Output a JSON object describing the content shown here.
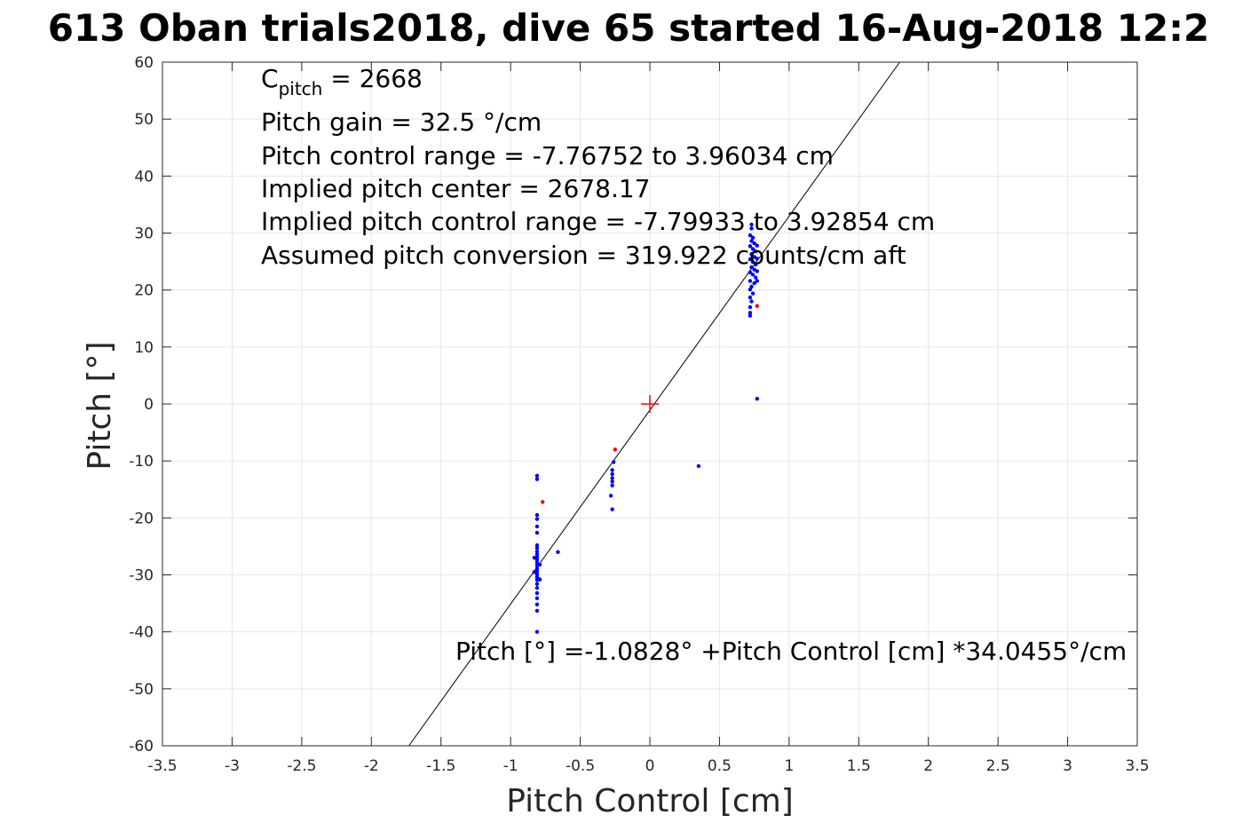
{
  "chart_data": {
    "type": "scatter",
    "title": "613 Oban trials2018, dive 65 started 16-Aug-2018 12:2",
    "xlabel": "Pitch Control [cm]",
    "ylabel": "Pitch [°]",
    "xlim": [
      -3.5,
      3.5
    ],
    "ylim": [
      -60,
      60
    ],
    "xticks": [
      "-3.5",
      "-3",
      "-2.5",
      "-2",
      "-1.5",
      "-1",
      "-0.5",
      "0",
      "0.5",
      "1",
      "1.5",
      "2",
      "2.5",
      "3",
      "3.5"
    ],
    "yticks": [
      "60",
      "50",
      "40",
      "30",
      "20",
      "10",
      "0",
      "-10",
      "-20",
      "-30",
      "-40",
      "-50",
      "-60"
    ],
    "grid": true,
    "annotations": {
      "c_pitch_symbol": "C",
      "c_pitch_sub": "pitch",
      "c_pitch_value": " = 2668",
      "pitch_gain": "Pitch gain = 32.5 °/cm",
      "pitch_control_range": "Pitch control range = -7.76752 to 3.96034 cm",
      "implied_center": "Implied pitch center = 2678.17",
      "implied_range": "Implied pitch control range = -7.79933 to 3.92854 cm",
      "assumed_conversion": "Assumed pitch conversion = 319.922 counts/cm aft",
      "fit_equation": "Pitch [°] =-1.0828° +Pitch Control [cm] *34.0455°/cm"
    },
    "fit_line": {
      "intercept": -1.0828,
      "slope": 34.0455,
      "color": "#000000"
    },
    "center_marker": {
      "x": 0,
      "y": 0,
      "color": "#ff0000"
    },
    "series": [
      {
        "color": "#0000ff",
        "points": [
          [
            -0.81,
            -12.6
          ],
          [
            -0.81,
            -13.2
          ],
          [
            -0.81,
            -19.5
          ],
          [
            -0.81,
            -20.2
          ],
          [
            -0.81,
            -21.5
          ],
          [
            -0.81,
            -22.6
          ],
          [
            -0.81,
            -24.8
          ],
          [
            -0.81,
            -25.3
          ],
          [
            -0.81,
            -25.9
          ],
          [
            -0.81,
            -26.4
          ],
          [
            -0.81,
            -26.9
          ],
          [
            -0.81,
            -27.4
          ],
          [
            -0.81,
            -27.9
          ],
          [
            -0.81,
            -28.4
          ],
          [
            -0.81,
            -28.9
          ],
          [
            -0.81,
            -29.4
          ],
          [
            -0.81,
            -29.9
          ],
          [
            -0.81,
            -30.4
          ],
          [
            -0.81,
            -30.9
          ],
          [
            -0.81,
            -31.6
          ],
          [
            -0.81,
            -32.3
          ],
          [
            -0.81,
            -33.2
          ],
          [
            -0.81,
            -34.1
          ],
          [
            -0.81,
            -35.2
          ],
          [
            -0.81,
            -36.3
          ],
          [
            -0.81,
            -40.0
          ],
          [
            -0.83,
            -27.0
          ],
          [
            -0.79,
            -28.2
          ],
          [
            -0.83,
            -29.5
          ],
          [
            -0.79,
            -30.8
          ],
          [
            -0.66,
            -26.0
          ],
          [
            -0.26,
            -10.2
          ],
          [
            -0.27,
            -11.6
          ],
          [
            -0.27,
            -12.3
          ],
          [
            -0.27,
            -13.0
          ],
          [
            -0.27,
            -13.6
          ],
          [
            -0.27,
            -14.3
          ],
          [
            -0.28,
            -16.1
          ],
          [
            -0.27,
            -18.5
          ],
          [
            0.35,
            -10.9
          ],
          [
            0.77,
            0.9
          ],
          [
            0.73,
            31.5
          ],
          [
            0.73,
            30.8
          ],
          [
            0.72,
            29.6
          ],
          [
            0.74,
            29.2
          ],
          [
            0.73,
            28.6
          ],
          [
            0.75,
            28.2
          ],
          [
            0.72,
            27.7
          ],
          [
            0.74,
            27.2
          ],
          [
            0.76,
            26.8
          ],
          [
            0.73,
            26.3
          ],
          [
            0.75,
            25.8
          ],
          [
            0.72,
            25.4
          ],
          [
            0.74,
            24.9
          ],
          [
            0.76,
            24.5
          ],
          [
            0.73,
            24.0
          ],
          [
            0.75,
            23.6
          ],
          [
            0.72,
            23.1
          ],
          [
            0.74,
            22.7
          ],
          [
            0.76,
            22.2
          ],
          [
            0.72,
            21.6
          ],
          [
            0.75,
            21.2
          ],
          [
            0.73,
            20.6
          ],
          [
            0.72,
            20.1
          ],
          [
            0.74,
            19.4
          ],
          [
            0.72,
            18.7
          ],
          [
            0.73,
            18.0
          ],
          [
            0.72,
            17.0
          ],
          [
            0.72,
            16.0
          ],
          [
            0.72,
            15.5
          ],
          [
            0.77,
            21.6
          ],
          [
            0.77,
            23.3
          ],
          [
            0.77,
            25.5
          ],
          [
            0.77,
            27.8
          ]
        ]
      },
      {
        "color": "#ff0000",
        "points": [
          [
            -0.77,
            -17.2
          ],
          [
            -0.25,
            -8.0
          ],
          [
            0.77,
            17.2
          ]
        ]
      }
    ]
  }
}
